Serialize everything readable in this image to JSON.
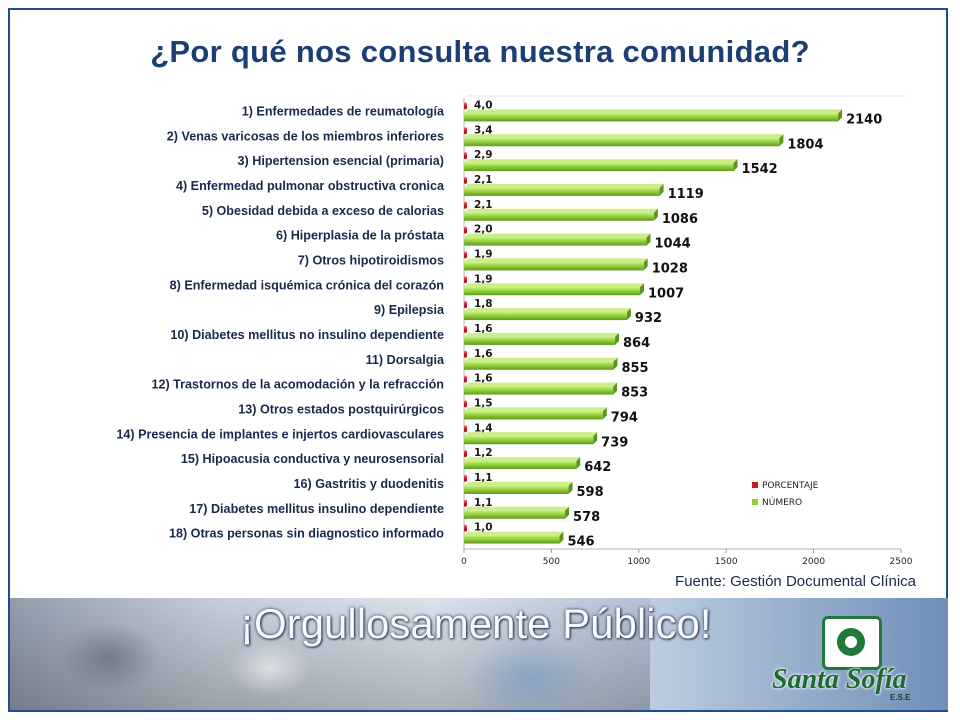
{
  "page": {
    "title": "¿Por qué nos consulta nuestra comunidad?",
    "source": "Fuente: Gestión Documental Clínica"
  },
  "banner": {
    "slogan": "¡Orgullosamente Público!",
    "logo_name": "Santa Sofía",
    "logo_sub": "E.S.E"
  },
  "colors": {
    "title": "#1b3f73",
    "numero": "#8fcc3a",
    "porcentaje": "#d0181f",
    "frame": "#1f4e8c"
  },
  "chart_data": {
    "type": "bar",
    "orientation": "horizontal",
    "categories": [
      "1) Enfermedades de reumatología",
      "2) Venas varicosas de los miembros inferiores",
      "3)  Hipertension esencial (primaria)",
      "4) Enfermedad pulmonar obstructiva cronica",
      "5) Obesidad debida a exceso de calorias",
      "6) Hiperplasia de la próstata",
      "7)  Otros hipotiroidismos",
      "8)  Enfermedad isquémica crónica del corazón",
      "9) Epilepsia",
      "10) Diabetes mellitus no insulino dependiente",
      "11) Dorsalgia",
      "12) Trastornos de la acomodación y la refracción",
      "13) Otros estados postquirúrgicos",
      "14) Presencia de implantes e injertos cardiovasculares",
      "15) Hipoacusia conductiva y neurosensorial",
      "16) Gastritis y duodenitis",
      "17) Diabetes mellitus insulino dependiente",
      "18) Otras personas sin diagnostico informado"
    ],
    "series": [
      {
        "name": "PORCENTAJE",
        "values": [
          4.0,
          3.4,
          2.9,
          2.1,
          2.1,
          2.0,
          1.9,
          1.9,
          1.8,
          1.6,
          1.6,
          1.6,
          1.5,
          1.4,
          1.2,
          1.1,
          1.1,
          1.0
        ],
        "labels": [
          "4,0",
          "3,4",
          "2,9",
          "2,1",
          "2,1",
          "2,0",
          "1,9",
          "1,9",
          "1,8",
          "1,6",
          "1,6",
          "1,6",
          "1,5",
          "1,4",
          "1,2",
          "1,1",
          "1,1",
          "1,0"
        ]
      },
      {
        "name": "NÚMERO",
        "values": [
          2140,
          1804,
          1542,
          1119,
          1086,
          1044,
          1028,
          1007,
          932,
          864,
          855,
          853,
          794,
          739,
          642,
          598,
          578,
          546
        ],
        "labels": [
          "2140",
          "1804",
          "1542",
          "1119",
          "1086",
          "1044",
          "1028",
          "1007",
          "932",
          "864",
          "855",
          "853",
          "794",
          "739",
          "642",
          "598",
          "578",
          "546"
        ]
      }
    ],
    "xlim": [
      0,
      2500
    ],
    "xticks": [
      "0",
      "500",
      "1000",
      "1500",
      "2000",
      "2500"
    ],
    "grid": false,
    "legend": "bottom-right",
    "style": "3d"
  }
}
